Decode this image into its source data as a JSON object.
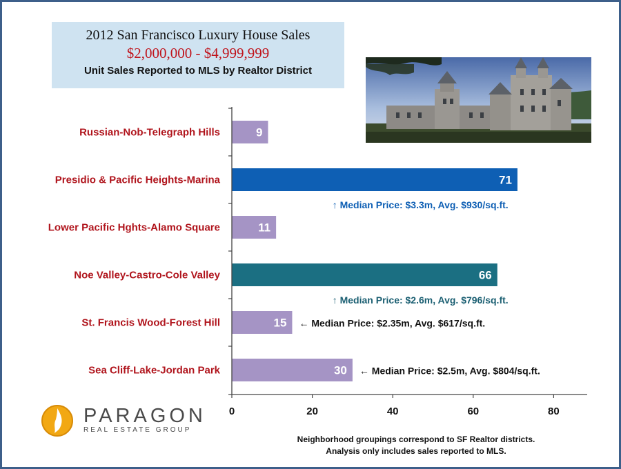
{
  "header": {
    "title": "2012 San Francisco Luxury House Sales",
    "price_range": "$2,000,000 - $4,999,999",
    "subtitle": "Unit Sales Reported to MLS by Realtor District"
  },
  "photo": {
    "icon": "castle-photo"
  },
  "chart_data": {
    "type": "bar",
    "orientation": "horizontal",
    "categories": [
      "Russian-Nob-Telegraph Hills",
      "Presidio & Pacific Heights-Marina",
      "Lower Pacific Hghts-Alamo Square",
      "Noe Valley-Castro-Cole Valley",
      "St. Francis Wood-Forest Hill",
      "Sea Cliff-Lake-Jordan Park"
    ],
    "values": [
      9,
      71,
      11,
      66,
      15,
      30
    ],
    "data_labels": [
      "9",
      "71",
      "11",
      "66",
      "15",
      "30"
    ],
    "bar_colors": [
      "#a594c5",
      "#0e5fb4",
      "#a594c5",
      "#1b6f82",
      "#a594c5",
      "#a594c5"
    ],
    "category_label_color": "#b0141c",
    "xlim": [
      0,
      88
    ],
    "xticks": [
      0,
      20,
      40,
      60,
      80
    ],
    "xtick_labels": [
      "0",
      "20",
      "40",
      "60",
      "80"
    ],
    "grid": false,
    "annotations": [
      {
        "category_index": 1,
        "position": "below",
        "arrow": "↑",
        "text": "Median Price: $3.3m, Avg. $930/sq.ft.",
        "color": "#0e5fb4"
      },
      {
        "category_index": 3,
        "position": "below",
        "arrow": "↑",
        "text": "Median Price: $2.6m, Avg. $796/sq.ft.",
        "color": "#1b5f72"
      },
      {
        "category_index": 4,
        "position": "right",
        "arrow": "←",
        "text": "Median Price: $2.35m, Avg. $617/sq.ft.",
        "color": "#111111"
      },
      {
        "category_index": 5,
        "position": "right",
        "arrow": "←",
        "text": "Median Price: $2.5m, Avg. $804/sq.ft.",
        "color": "#111111"
      }
    ]
  },
  "logo": {
    "name": "PARAGON",
    "tagline": "REAL ESTATE GROUP",
    "icon": "paragon-flame-icon"
  },
  "footnote": {
    "line1": "Neighborhood groupings  correspond to SF Realtor districts.",
    "line2": "Analysis only includes sales reported to MLS."
  }
}
